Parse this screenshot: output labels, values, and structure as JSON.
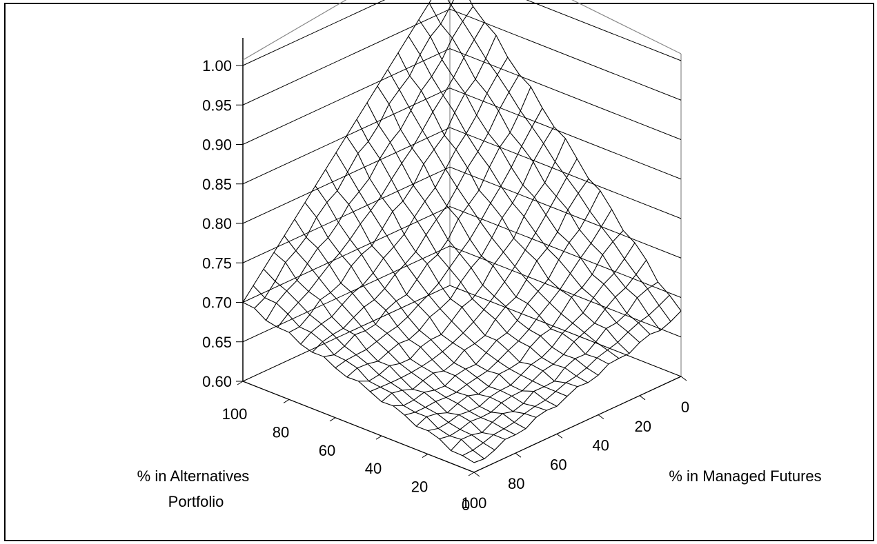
{
  "chart_data": {
    "type": "surface3d",
    "title": "",
    "zlabel": "",
    "xlabel": "% in Managed Futures",
    "ylabel_lines": [
      "% in Alternatives",
      "Portfolio"
    ],
    "z_ticks": [
      "1.00",
      "0.95",
      "0.90",
      "0.85",
      "0.80",
      "0.75",
      "0.70",
      "0.65",
      "0.60"
    ],
    "x_ticks": [
      "0",
      "20",
      "40",
      "60",
      "80",
      "100"
    ],
    "y_ticks": [
      "100",
      "80",
      "60",
      "40",
      "20",
      "0"
    ],
    "zlim": [
      0.6,
      1.0
    ],
    "x_range": [
      0,
      100
    ],
    "y_range": [
      0,
      100
    ],
    "grid_steps": 20,
    "corner_values": {
      "x0_y0": 1.0,
      "x100_y0": 0.68,
      "x0_y100": 0.7,
      "x100_y100": 0.61
    },
    "ridge_value_at_center": 0.69,
    "gridlines": true,
    "wireframe_color": "#000000",
    "background": "#ffffff"
  }
}
